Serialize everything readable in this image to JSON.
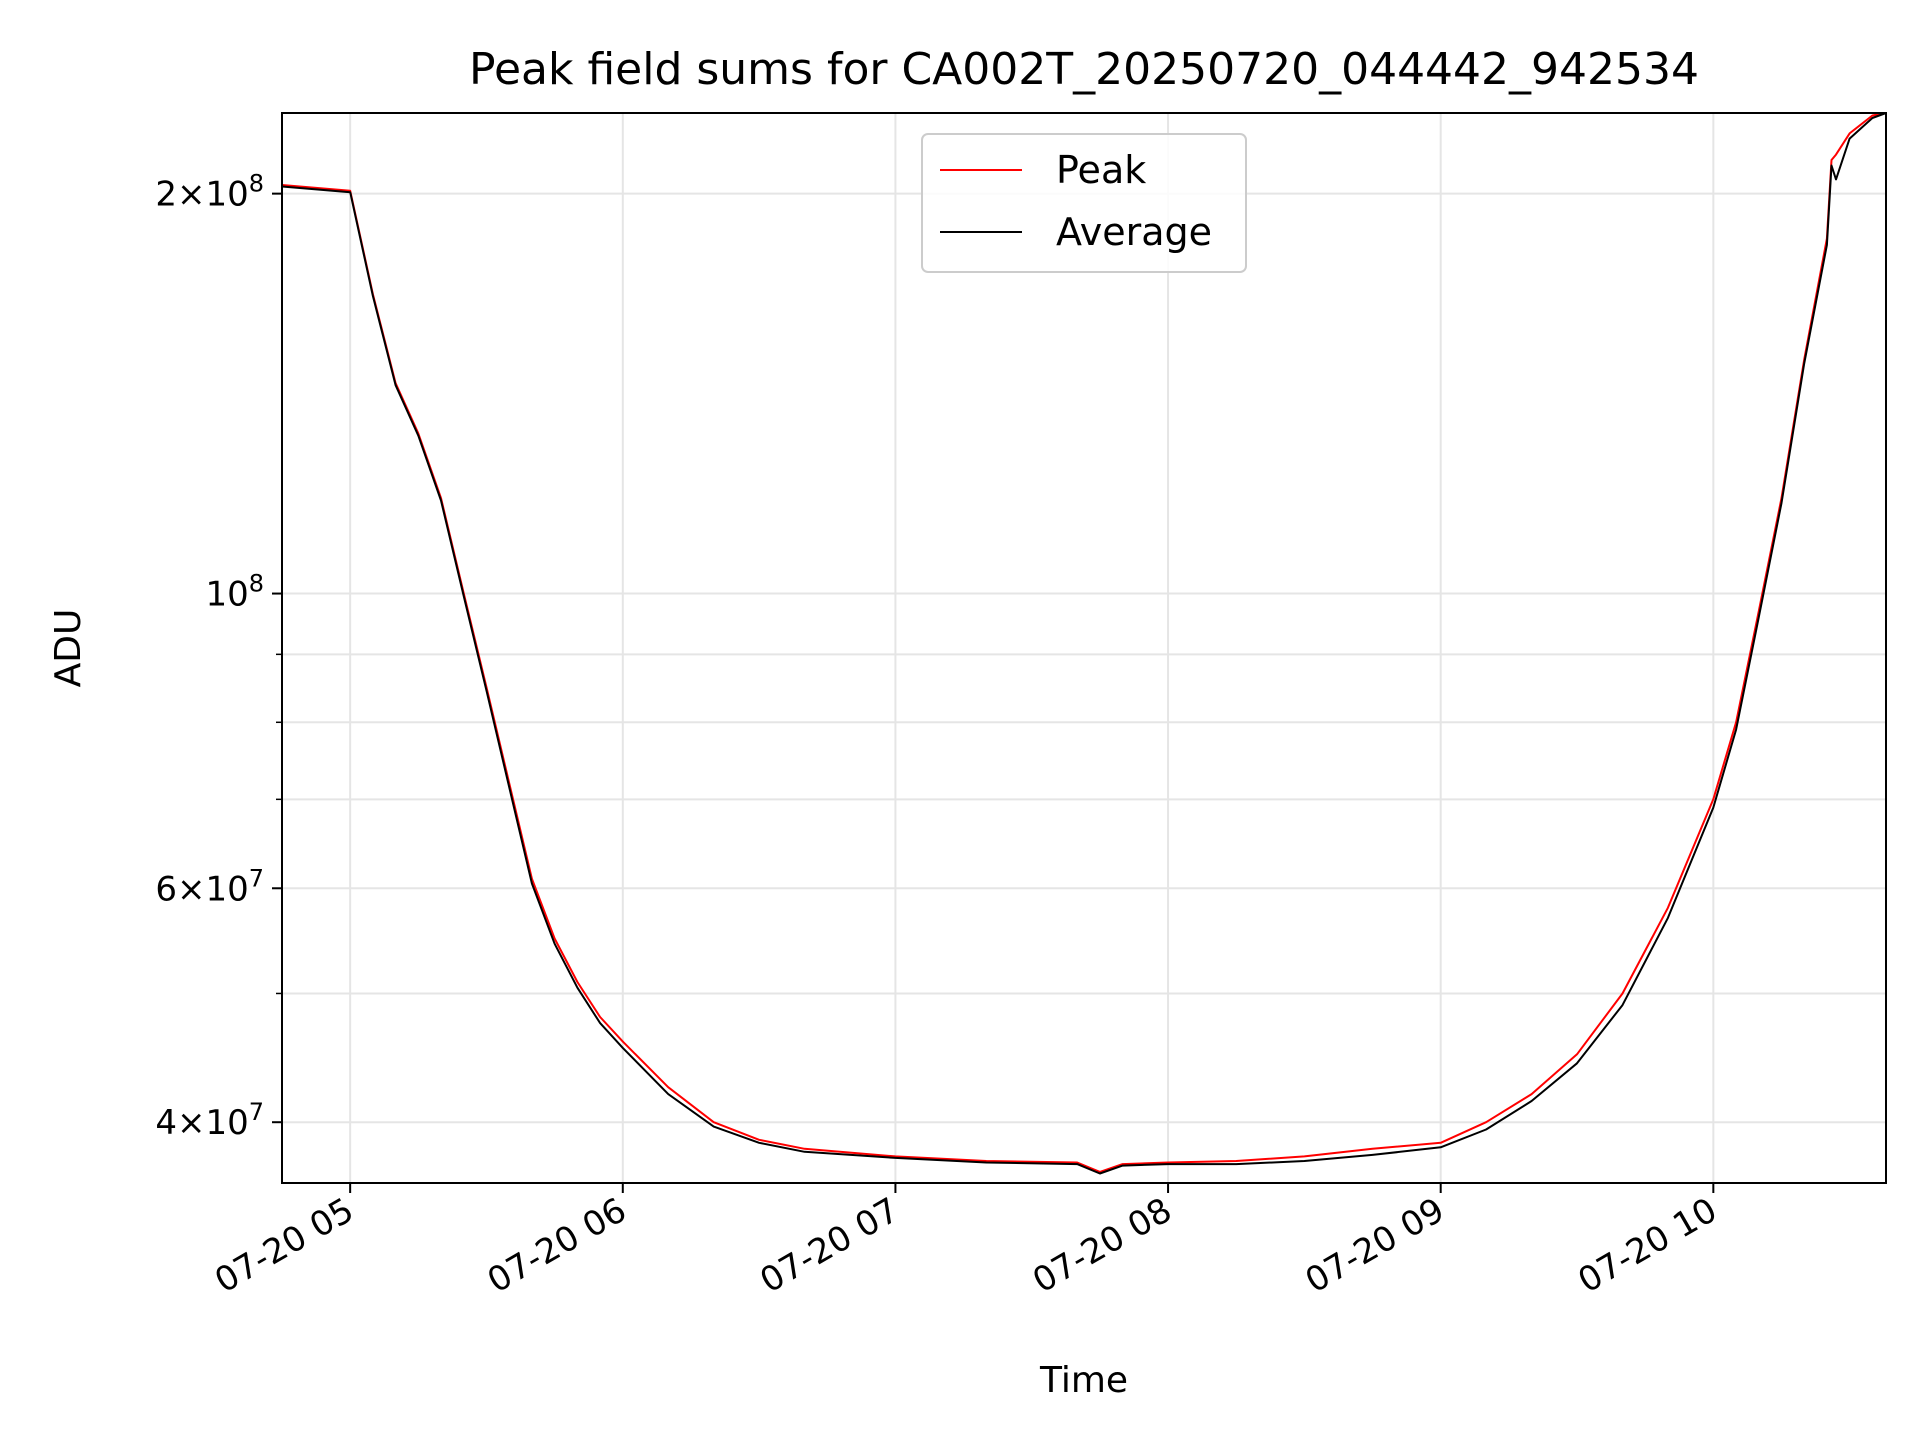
{
  "chart_data": {
    "type": "line",
    "title": "Peak field sums for CA002T_20250720_044442_942534",
    "xlabel": "Time",
    "ylabel": "ADU",
    "yscale": "log",
    "grid": true,
    "legend_position": "top-center",
    "xlim": [
      "07-20 04:45",
      "07-20 10:38"
    ],
    "ylim": [
      36000000,
      230000000
    ],
    "x_ticks": [
      {
        "value": "07-20 05:00",
        "label": "07-20 05"
      },
      {
        "value": "07-20 06:00",
        "label": "07-20 06"
      },
      {
        "value": "07-20 07:00",
        "label": "07-20 07"
      },
      {
        "value": "07-20 08:00",
        "label": "07-20 08"
      },
      {
        "value": "07-20 09:00",
        "label": "07-20 09"
      },
      {
        "value": "07-20 10:00",
        "label": "07-20 10"
      }
    ],
    "y_ticks": [
      {
        "value": 40000000,
        "mantissa": "4",
        "exponent": "7"
      },
      {
        "value": 60000000,
        "mantissa": "6",
        "exponent": "7"
      },
      {
        "value": 100000000,
        "mantissa": "",
        "exponent": "8"
      },
      {
        "value": 200000000,
        "mantissa": "2",
        "exponent": "8"
      }
    ],
    "y_minor_ticks": [
      50000000,
      70000000,
      80000000,
      90000000
    ],
    "colors": {
      "peak": "#ff0000",
      "average": "#000000",
      "grid": "#e5e5e5"
    },
    "series": [
      {
        "name": "Peak",
        "color": "#ff0000",
        "x": [
          "07-20 04:45",
          "07-20 05:00",
          "07-20 05:05",
          "07-20 05:10",
          "07-20 05:15",
          "07-20 05:20",
          "07-20 05:25",
          "07-20 05:30",
          "07-20 05:35",
          "07-20 05:40",
          "07-20 05:45",
          "07-20 05:50",
          "07-20 05:55",
          "07-20 06:00",
          "07-20 06:10",
          "07-20 06:20",
          "07-20 06:30",
          "07-20 06:40",
          "07-20 07:00",
          "07-20 07:20",
          "07-20 07:40",
          "07-20 07:45",
          "07-20 07:50",
          "07-20 08:00",
          "07-20 08:15",
          "07-20 08:30",
          "07-20 08:45",
          "07-20 09:00",
          "07-20 09:10",
          "07-20 09:20",
          "07-20 09:30",
          "07-20 09:40",
          "07-20 09:50",
          "07-20 10:00",
          "07-20 10:05",
          "07-20 10:10",
          "07-20 10:15",
          "07-20 10:20",
          "07-20 10:25",
          "07-20 10:26",
          "07-20 10:27",
          "07-20 10:30",
          "07-20 10:35",
          "07-20 10:38"
        ],
        "y": [
          203000000,
          201000000,
          168000000,
          144000000,
          132000000,
          118000000,
          100000000,
          85000000,
          72000000,
          61000000,
          55000000,
          51000000,
          48000000,
          46000000,
          42500000,
          40000000,
          38800000,
          38200000,
          37700000,
          37400000,
          37300000,
          36700000,
          37200000,
          37300000,
          37400000,
          37700000,
          38200000,
          38600000,
          40000000,
          42000000,
          45000000,
          50000000,
          58000000,
          70000000,
          80000000,
          97000000,
          118000000,
          150000000,
          185000000,
          212000000,
          214000000,
          222000000,
          229000000,
          230000000
        ]
      },
      {
        "name": "Average",
        "color": "#000000",
        "x": [
          "07-20 04:45",
          "07-20 05:00",
          "07-20 05:05",
          "07-20 05:10",
          "07-20 05:15",
          "07-20 05:20",
          "07-20 05:25",
          "07-20 05:30",
          "07-20 05:35",
          "07-20 05:40",
          "07-20 05:45",
          "07-20 05:50",
          "07-20 05:55",
          "07-20 06:00",
          "07-20 06:10",
          "07-20 06:20",
          "07-20 06:30",
          "07-20 06:40",
          "07-20 07:00",
          "07-20 07:20",
          "07-20 07:40",
          "07-20 07:45",
          "07-20 07:50",
          "07-20 08:00",
          "07-20 08:15",
          "07-20 08:30",
          "07-20 08:45",
          "07-20 09:00",
          "07-20 09:10",
          "07-20 09:20",
          "07-20 09:30",
          "07-20 09:40",
          "07-20 09:50",
          "07-20 10:00",
          "07-20 10:05",
          "07-20 10:10",
          "07-20 10:15",
          "07-20 10:20",
          "07-20 10:25",
          "07-20 10:26",
          "07-20 10:27",
          "07-20 10:30",
          "07-20 10:35",
          "07-20 10:38"
        ],
        "y": [
          202500000,
          200500000,
          167500000,
          143500000,
          131500000,
          117500000,
          99500000,
          84500000,
          71500000,
          60500000,
          54500000,
          50500000,
          47500000,
          45500000,
          42000000,
          39700000,
          38600000,
          38000000,
          37600000,
          37300000,
          37200000,
          36600000,
          37100000,
          37200000,
          37200000,
          37400000,
          37800000,
          38300000,
          39500000,
          41500000,
          44300000,
          49000000,
          57000000,
          69000000,
          79000000,
          96000000,
          117000000,
          149000000,
          183000000,
          210000000,
          205000000,
          220000000,
          228000000,
          230000000
        ]
      }
    ]
  }
}
